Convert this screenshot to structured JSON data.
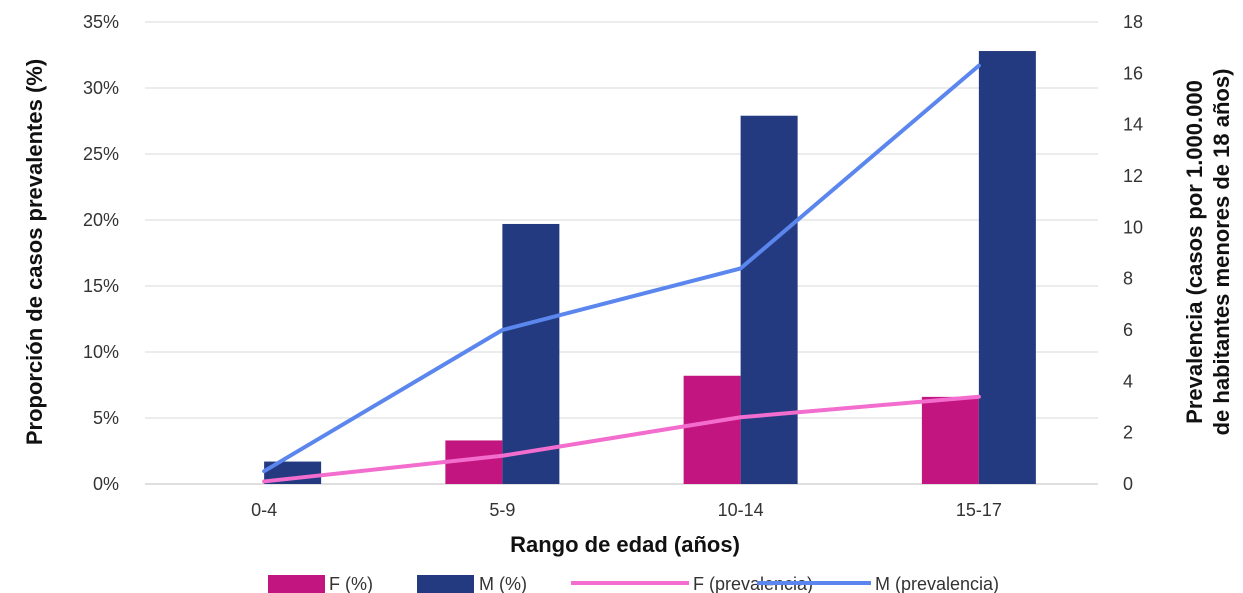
{
  "chart_data": {
    "type": "bar",
    "categories": [
      "0-4",
      "5-9",
      "10-14",
      "15-17"
    ],
    "xlabel": "Rango de edad (años)",
    "ylabel": "Proporción de casos prevalentes (%)",
    "y2label_line1": "Prevalencia (casos por 1.000.000",
    "y2label_line2": "de habitantes menores de 18 años)",
    "ylim": [
      0,
      35
    ],
    "y_ticks": [
      "0%",
      "5%",
      "10%",
      "15%",
      "20%",
      "25%",
      "30%",
      "35%"
    ],
    "y2lim": [
      0,
      18
    ],
    "y2_ticks": [
      "0",
      "2",
      "4",
      "6",
      "8",
      "10",
      "12",
      "14",
      "16",
      "18"
    ],
    "grid": "horizontal",
    "legend_position": "bottom",
    "series": [
      {
        "name": "F (%)",
        "kind": "bar",
        "axis": "left",
        "color": "#C2157F",
        "values": [
          0.0,
          3.3,
          8.2,
          6.6
        ]
      },
      {
        "name": "M (%)",
        "kind": "bar",
        "axis": "left",
        "color": "#233A80",
        "values": [
          1.7,
          19.7,
          27.9,
          32.8
        ]
      },
      {
        "name": "F (prevalencia)",
        "kind": "line",
        "axis": "right",
        "color": "#F26DCE",
        "values": [
          0.1,
          1.1,
          2.6,
          3.4
        ]
      },
      {
        "name": "M (prevalencia)",
        "kind": "line",
        "axis": "right",
        "color": "#5B86EE",
        "values": [
          0.5,
          6.0,
          8.4,
          16.3
        ]
      }
    ]
  }
}
